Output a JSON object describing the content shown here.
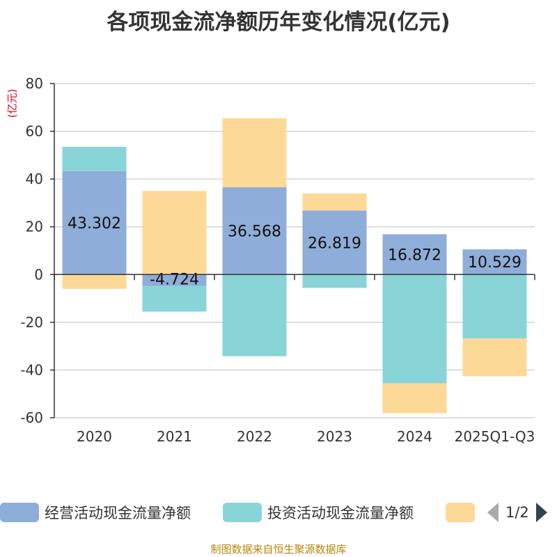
{
  "title": "各项现金流净额历年变化情况(亿元)",
  "unit_label": "(亿元)",
  "source": "制图数据来自恒生聚源数据库",
  "legend": {
    "items": [
      {
        "label": "经营活动现金流量净额",
        "color": "#8eadd9"
      },
      {
        "label": "投资活动现金流量净额",
        "color": "#88d4d6"
      },
      {
        "label": "",
        "color": "#fdd998"
      }
    ],
    "page": "1/2"
  },
  "chart_data": {
    "type": "bar",
    "stacked": true,
    "title": "各项现金流净额历年变化情况(亿元)",
    "ylabel": "(亿元)",
    "ylim": [
      -60,
      80
    ],
    "yticks": [
      80,
      60,
      40,
      20,
      0,
      -20,
      -40,
      -60
    ],
    "categories": [
      "2020",
      "2021",
      "2022",
      "2023",
      "2024",
      "2025Q1-Q3"
    ],
    "series": [
      {
        "name": "经营活动现金流量净额",
        "color": "#8eadd9",
        "values": [
          43.302,
          -4.724,
          36.568,
          26.819,
          16.872,
          10.529
        ],
        "show_labels": true
      },
      {
        "name": "投资活动现金流量净额",
        "color": "#88d4d6",
        "values": [
          10.2,
          -10.8,
          -34.2,
          -5.6,
          -45.6,
          -26.8
        ],
        "show_labels": false
      },
      {
        "name": "",
        "color": "#fdd998",
        "values": [
          -6.0,
          35.0,
          28.9,
          7.1,
          -12.5,
          -15.8
        ],
        "show_labels": false
      }
    ]
  }
}
